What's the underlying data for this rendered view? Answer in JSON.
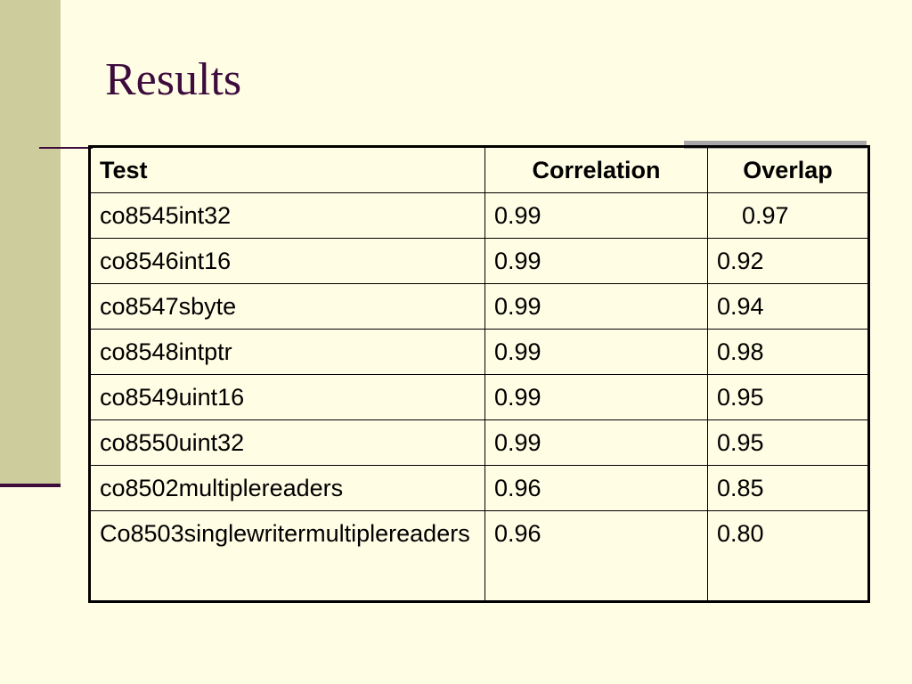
{
  "slide": {
    "title": "Results"
  },
  "table": {
    "headers": {
      "test": "Test",
      "correlation": "Correlation",
      "overlap": "Overlap"
    },
    "rows": [
      {
        "test": "co8545int32",
        "correlation": "0.99",
        "overlap": "0.97"
      },
      {
        "test": "co8546int16",
        "correlation": "0.99",
        "overlap": "0.92"
      },
      {
        "test": "co8547sbyte",
        "correlation": "0.99",
        "overlap": "0.94"
      },
      {
        "test": "co8548intptr",
        "correlation": "0.99",
        "overlap": "0.98"
      },
      {
        "test": "co8549uint16",
        "correlation": "0.99",
        "overlap": "0.95"
      },
      {
        "test": "co8550uint32",
        "correlation": "0.99",
        "overlap": "0.95"
      },
      {
        "test": "co8502multiplereaders",
        "correlation": "0.96",
        "overlap": "0.85"
      },
      {
        "test": "Co8503singlewritermultiplereaders",
        "correlation": "0.96",
        "overlap": "0.80"
      }
    ]
  },
  "colors": {
    "background": "#fffde4",
    "side_band": "#cccc9c",
    "accent": "#3d0c3d",
    "shadow": "#a8a8a8"
  }
}
